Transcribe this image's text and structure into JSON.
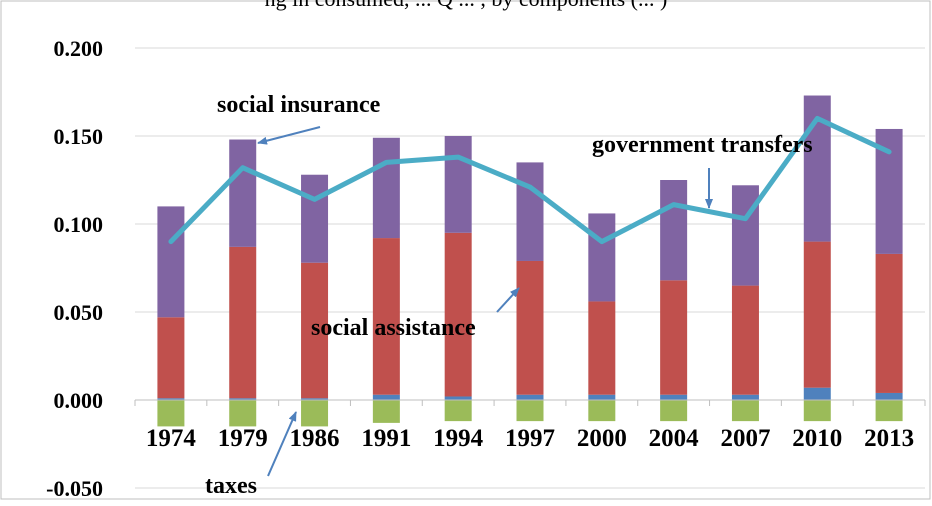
{
  "chart_data": {
    "type": "bar",
    "title_fragment": "ng in consumed, ... Q ... , by components (... )",
    "categories": [
      "1974",
      "1979",
      "1986",
      "1991",
      "1994",
      "1997",
      "2000",
      "2004",
      "2007",
      "2010",
      "2013"
    ],
    "ylim": [
      -0.05,
      0.2
    ],
    "yticks": [
      "0.200",
      "0.150",
      "0.100",
      "0.050",
      "0.000",
      "-0.050"
    ],
    "series": [
      {
        "name": "taxes",
        "color": "#9bbb59",
        "values": [
          -0.015,
          -0.015,
          -0.015,
          -0.013,
          -0.012,
          -0.012,
          -0.012,
          -0.012,
          -0.012,
          -0.012,
          -0.012
        ]
      },
      {
        "name": "",
        "color": "#4f81bd",
        "values": [
          0.001,
          0.001,
          0.001,
          0.003,
          0.002,
          0.003,
          0.003,
          0.003,
          0.003,
          0.007,
          0.004
        ]
      },
      {
        "name": "social assistance",
        "color": "#c0504d",
        "values": [
          0.046,
          0.086,
          0.077,
          0.089,
          0.093,
          0.076,
          0.053,
          0.065,
          0.062,
          0.083,
          0.079
        ]
      },
      {
        "name": "social insurance",
        "color": "#8064a2",
        "values": [
          0.063,
          0.061,
          0.05,
          0.057,
          0.055,
          0.056,
          0.05,
          0.057,
          0.057,
          0.083,
          0.071
        ]
      }
    ],
    "line": {
      "name": "government transfers",
      "color": "#4bacc6",
      "values": [
        0.09,
        0.132,
        0.114,
        0.135,
        0.138,
        0.121,
        0.09,
        0.111,
        0.103,
        0.16,
        0.141
      ]
    },
    "annotations": [
      "social insurance",
      "government transfers",
      "social assistance",
      "taxes"
    ],
    "annotation_arrow_color": "#4f81bd",
    "grid": true
  }
}
